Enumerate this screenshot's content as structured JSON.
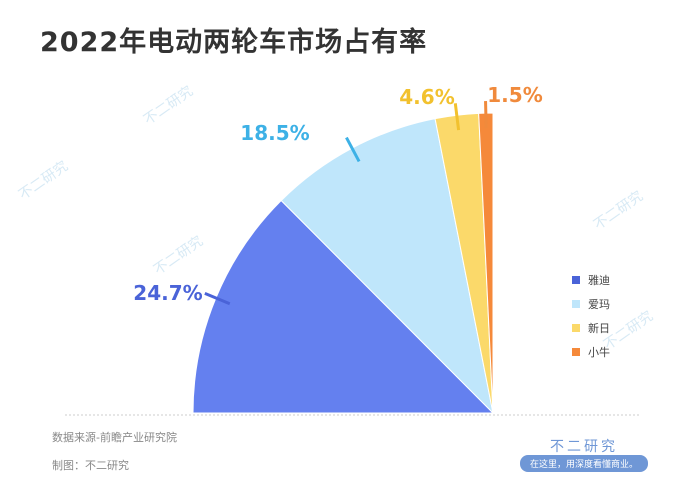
{
  "title": "2022年电动两轮车市场占有率",
  "chart_data": {
    "type": "pie",
    "title": "2022年电动两轮车市场占有率",
    "categories": [
      "雅迪",
      "爱玛",
      "新日",
      "小牛"
    ],
    "values": [
      24.7,
      18.5,
      4.6,
      1.5
    ],
    "labels": [
      "24.7%",
      "18.5%",
      "4.6%",
      "1.5%"
    ],
    "colors": [
      "#6480ef",
      "#bfe6fb",
      "#fbd96a",
      "#f5893a"
    ],
    "label_colors": [
      "#4a63d8",
      "#3db1e6",
      "#f2c12e",
      "#f08a3c"
    ],
    "layout_note_shape": "quarter-circle",
    "legend": "right"
  },
  "footer": {
    "source": "数据来源-前瞻产业研究院",
    "maker": "制图：不二研究",
    "brand": "不二研究",
    "slogan": "在这里，用深度看懂商业。",
    "watermark": "不二研究"
  }
}
